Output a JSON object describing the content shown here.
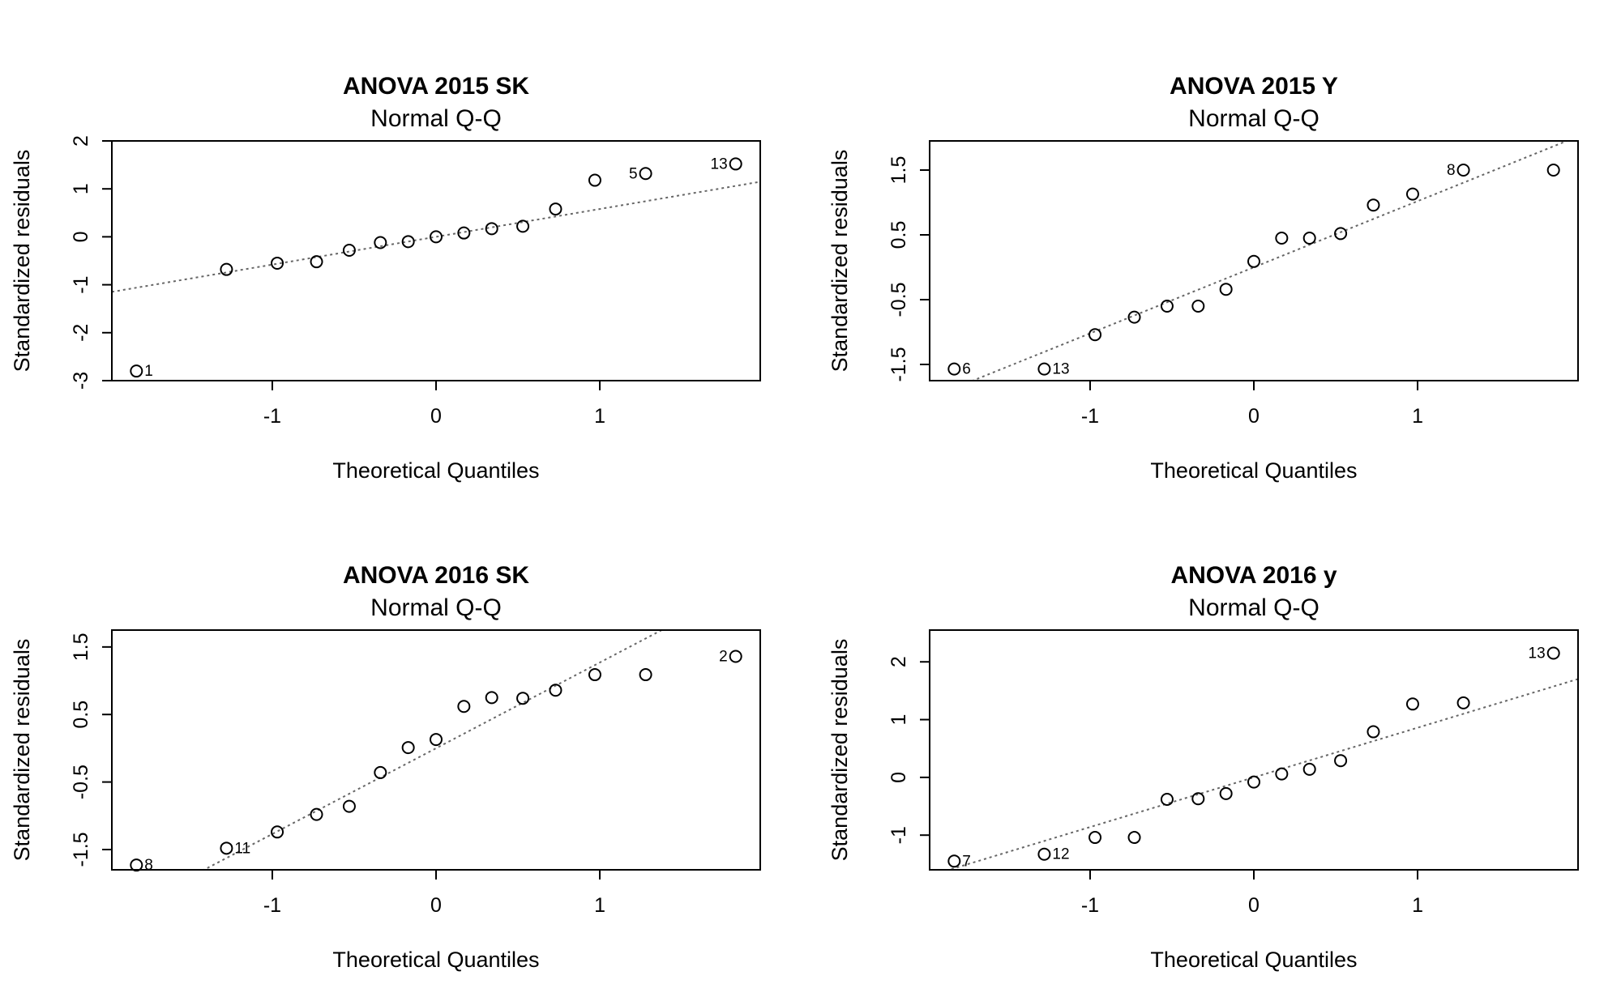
{
  "chart_data": [
    {
      "type": "scatter",
      "title": "ANOVA 2015 SK",
      "subtitle": "Normal Q-Q",
      "xlabel": "Theoretical Quantiles",
      "ylabel": "Standardized residuals",
      "xlim": [
        -1.98,
        1.98
      ],
      "ylim": [
        -3.0,
        2.0
      ],
      "xticks": [
        -1,
        0,
        1
      ],
      "xtick_labels": [
        "-1",
        "0",
        "1"
      ],
      "yticks": [
        -3,
        -2,
        -1,
        0,
        1,
        2
      ],
      "ytick_labels": [
        "-3",
        "-2",
        "-1",
        "0",
        "1",
        "2"
      ],
      "x": [
        -1.83,
        -1.28,
        -0.97,
        -0.73,
        -0.53,
        -0.34,
        -0.17,
        0.0,
        0.17,
        0.34,
        0.53,
        0.73,
        0.97,
        1.28,
        1.83
      ],
      "y": [
        -2.8,
        -0.68,
        -0.55,
        -0.52,
        -0.28,
        -0.12,
        -0.1,
        0.0,
        0.08,
        0.17,
        0.22,
        0.58,
        1.18,
        1.32,
        1.52
      ],
      "point_labels": [
        {
          "index": 0,
          "text": "1"
        },
        {
          "index": 13,
          "text": "5"
        },
        {
          "index": 14,
          "text": "13"
        }
      ],
      "refline": {
        "intercept": 0.0,
        "slope": 0.58
      },
      "grid": false
    },
    {
      "type": "scatter",
      "title": "ANOVA 2015 Y",
      "subtitle": "Normal Q-Q",
      "xlabel": "Theoretical Quantiles",
      "ylabel": "Standardized residuals",
      "xlim": [
        -1.98,
        1.98
      ],
      "ylim": [
        -1.75,
        1.95
      ],
      "xticks": [
        -1,
        0,
        1
      ],
      "xtick_labels": [
        "-1",
        "0",
        "1"
      ],
      "yticks": [
        -1.5,
        -0.5,
        0.5,
        1.5
      ],
      "ytick_labels": [
        "-1.5",
        "-0.5",
        "0.5",
        "1.5"
      ],
      "x": [
        -1.83,
        -1.28,
        -0.97,
        -0.73,
        -0.53,
        -0.34,
        -0.17,
        0.0,
        0.17,
        0.34,
        0.53,
        0.73,
        0.97,
        1.28,
        1.83
      ],
      "y": [
        -1.57,
        -1.57,
        -1.04,
        -0.77,
        -0.6,
        -0.6,
        -0.34,
        0.09,
        0.45,
        0.45,
        0.52,
        0.96,
        1.13,
        1.5,
        1.5
      ],
      "point_labels": [
        {
          "index": 0,
          "text": "6"
        },
        {
          "index": 1,
          "text": "13"
        },
        {
          "index": 13,
          "text": "8"
        }
      ],
      "refline": {
        "intercept": 0.0,
        "slope": 1.02
      },
      "grid": false
    },
    {
      "type": "scatter",
      "title": "ANOVA 2016 SK",
      "subtitle": "Normal Q-Q",
      "xlabel": "Theoretical Quantiles",
      "ylabel": "Standardized residuals",
      "xlim": [
        -1.98,
        1.98
      ],
      "ylim": [
        -1.8,
        1.75
      ],
      "xticks": [
        -1,
        0,
        1
      ],
      "xtick_labels": [
        "-1",
        "0",
        "1"
      ],
      "yticks": [
        -1.5,
        -0.5,
        0.5,
        1.5
      ],
      "ytick_labels": [
        "-1.5",
        "-0.5",
        "0.5",
        "1.5"
      ],
      "x": [
        -1.83,
        -1.28,
        -0.97,
        -0.73,
        -0.53,
        -0.34,
        -0.17,
        0.0,
        0.17,
        0.34,
        0.53,
        0.73,
        0.97,
        1.28,
        1.83
      ],
      "y": [
        -1.73,
        -1.48,
        -1.24,
        -0.98,
        -0.86,
        -0.36,
        0.01,
        0.13,
        0.62,
        0.75,
        0.74,
        0.86,
        1.09,
        1.09,
        1.36
      ],
      "point_labels": [
        {
          "index": 0,
          "text": "8"
        },
        {
          "index": 1,
          "text": "11"
        },
        {
          "index": 14,
          "text": "2"
        }
      ],
      "refline": {
        "intercept": 0.0,
        "slope": 1.27
      },
      "grid": false
    },
    {
      "type": "scatter",
      "title": "ANOVA 2016 y",
      "subtitle": "Normal Q-Q",
      "xlabel": "Theoretical Quantiles",
      "ylabel": "Standardized residuals",
      "xlim": [
        -1.98,
        1.98
      ],
      "ylim": [
        -1.6,
        2.55
      ],
      "xticks": [
        -1,
        0,
        1
      ],
      "xtick_labels": [
        "-1",
        "0",
        "1"
      ],
      "yticks": [
        -1,
        0,
        1,
        2
      ],
      "ytick_labels": [
        "-1",
        "0",
        "1",
        "2"
      ],
      "x": [
        -1.83,
        -1.28,
        -0.97,
        -0.73,
        -0.53,
        -0.34,
        -0.17,
        0.0,
        0.17,
        0.34,
        0.53,
        0.73,
        0.97,
        1.28,
        1.83
      ],
      "y": [
        -1.45,
        -1.33,
        -1.04,
        -1.04,
        -0.38,
        -0.37,
        -0.28,
        -0.08,
        0.06,
        0.14,
        0.29,
        0.79,
        1.27,
        1.29,
        2.15
      ],
      "point_labels": [
        {
          "index": 0,
          "text": "7"
        },
        {
          "index": 1,
          "text": "12"
        },
        {
          "index": 14,
          "text": "13"
        }
      ],
      "refline": {
        "intercept": 0.0,
        "slope": 0.86
      },
      "grid": false
    }
  ]
}
